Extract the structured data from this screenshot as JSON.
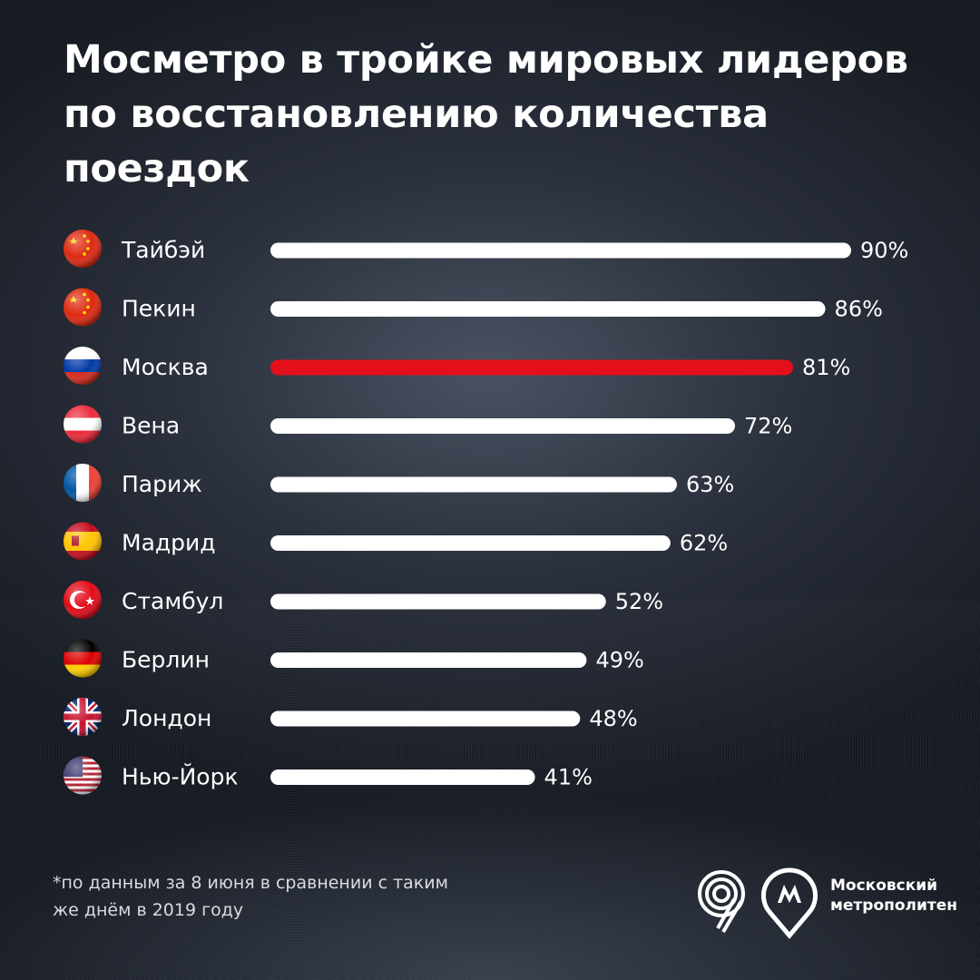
{
  "title": "Мосметро в тройке мировых лидеров по восстановлению количества поездок",
  "footnote_line1": "*по данным за 8 июня в сравнении с таким",
  "footnote_line2": "же днём в 2019 году",
  "logo": {
    "line1": "Московский",
    "line2": "метрополитен"
  },
  "colors": {
    "bar": "#ffffff",
    "highlight": "#e3101b"
  },
  "chart_data": {
    "type": "bar",
    "orientation": "horizontal",
    "categories": [
      "Тайбэй",
      "Пекин",
      "Москва",
      "Вена",
      "Париж",
      "Мадрид",
      "Стамбул",
      "Берлин",
      "Лондон",
      "Нью-Йорк"
    ],
    "values": [
      90,
      86,
      81,
      72,
      63,
      62,
      52,
      49,
      48,
      41
    ],
    "value_labels": [
      "90%",
      "86%",
      "81%",
      "72%",
      "63%",
      "62%",
      "52%",
      "49%",
      "48%",
      "41%"
    ],
    "flags": [
      "china-flag-icon",
      "china-flag-icon",
      "russia-flag-icon",
      "austria-flag-icon",
      "france-flag-icon",
      "spain-flag-icon",
      "turkey-flag-icon",
      "germany-flag-icon",
      "uk-flag-icon",
      "usa-flag-icon"
    ],
    "highlight": "Москва",
    "xlim": [
      0,
      90
    ],
    "grid": false
  }
}
